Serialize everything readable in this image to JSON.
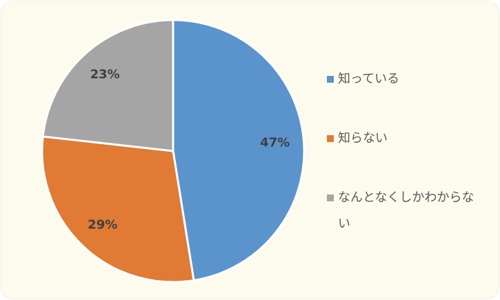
{
  "chart_data": {
    "type": "pie",
    "categories": [
      "知っている",
      "知らない",
      "なんとなくしかわからない"
    ],
    "values": [
      47,
      29,
      23
    ],
    "value_labels": [
      "47%",
      "29%",
      "23%"
    ],
    "colors": [
      "#5b94cc",
      "#e07a35",
      "#a5a5a5"
    ],
    "legend": "right"
  }
}
